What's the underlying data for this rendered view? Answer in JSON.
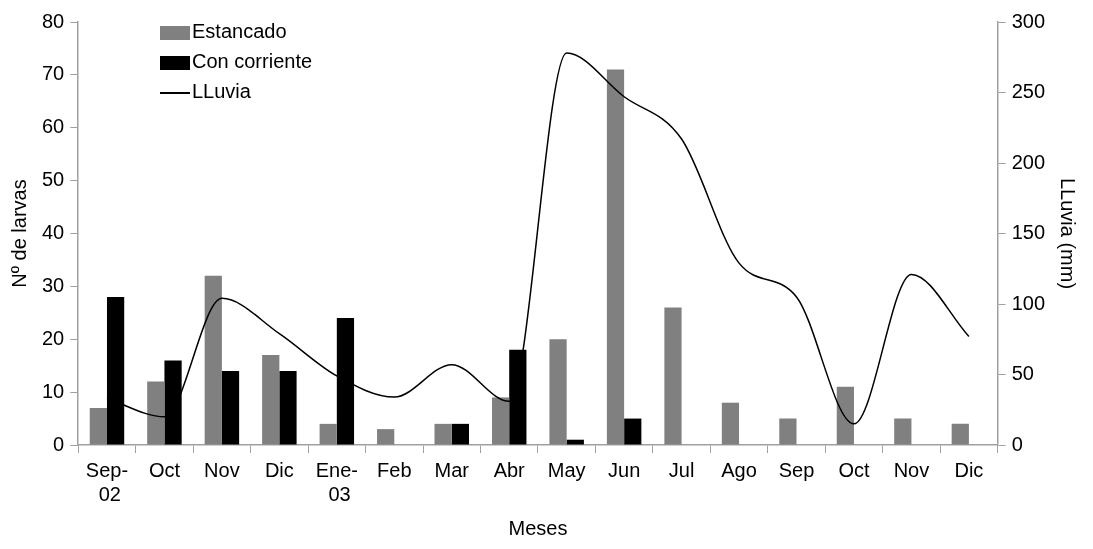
{
  "chart_data": {
    "type": "bar",
    "xlabel": "Meses",
    "ylabel": "Nº de larvas",
    "y2label": "LLuvia (mm)",
    "categories": [
      "Sep-02",
      "Oct",
      "Nov",
      "Dic",
      "Ene-03",
      "Feb",
      "Mar",
      "Abr",
      "May",
      "Jun",
      "Jul",
      "Ago",
      "Sep",
      "Oct",
      "Nov",
      "Dic"
    ],
    "series": [
      {
        "name": "Estancado",
        "color": "#808080",
        "values": [
          7,
          12,
          32,
          17,
          4,
          3,
          4,
          9,
          20,
          71,
          26,
          8,
          5,
          11,
          5,
          4
        ]
      },
      {
        "name": "Con corriente",
        "color": "#000000",
        "values": [
          28,
          16,
          14,
          14,
          24,
          0,
          4,
          18,
          1,
          5,
          0,
          0,
          0,
          0,
          0,
          0
        ]
      },
      {
        "name": "LLuvia",
        "type": "line",
        "axis": "y2",
        "color": "#000000",
        "values": [
          33,
          20,
          104,
          79,
          49,
          34,
          57,
          31,
          278,
          247,
          217,
          129,
          105,
          15,
          121,
          77
        ]
      }
    ],
    "ylim": [
      0,
      80
    ],
    "yticks": [
      0,
      10,
      20,
      30,
      40,
      50,
      60,
      70,
      80
    ],
    "y2lim": [
      0,
      300
    ],
    "y2ticks": [
      0,
      50,
      100,
      150,
      200,
      250,
      300
    ],
    "grid": false,
    "legend": "top left",
    "marker": "none",
    "line_style": "solid"
  }
}
